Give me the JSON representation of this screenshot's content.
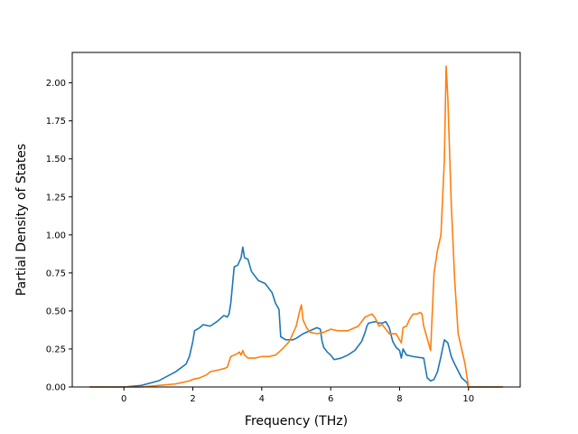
{
  "chart_data": {
    "type": "line",
    "title": "",
    "xlabel": "Frequency (THz)",
    "ylabel": "Partial Density of States",
    "xlim": [
      -1.5,
      11.5
    ],
    "ylim": [
      0.0,
      2.2
    ],
    "xticks": [
      0,
      2,
      4,
      6,
      8,
      10
    ],
    "xtick_labels": [
      "0",
      "2",
      "4",
      "6",
      "8",
      "10"
    ],
    "yticks": [
      0.0,
      0.25,
      0.5,
      0.75,
      1.0,
      1.25,
      1.5,
      1.75,
      2.0
    ],
    "ytick_labels": [
      "0.00",
      "0.25",
      "0.50",
      "0.75",
      "1.00",
      "1.25",
      "1.50",
      "1.75",
      "2.00"
    ],
    "grid": false,
    "legend": "none",
    "colors": {
      "series1": "#1f77b4",
      "series2": "#ff7f0e",
      "axes": "#000000"
    },
    "series": [
      {
        "color": "#1f77b4",
        "x": [
          -1.0,
          0.0,
          0.5,
          1.0,
          1.5,
          1.8,
          1.9,
          2.0,
          2.05,
          2.2,
          2.3,
          2.5,
          2.7,
          2.9,
          3.0,
          3.05,
          3.1,
          3.2,
          3.3,
          3.4,
          3.45,
          3.5,
          3.6,
          3.7,
          3.9,
          4.1,
          4.3,
          4.4,
          4.5,
          4.55,
          4.7,
          4.9,
          5.0,
          5.2,
          5.4,
          5.6,
          5.7,
          5.75,
          5.8,
          5.9,
          6.0,
          6.1,
          6.3,
          6.5,
          6.7,
          6.9,
          7.0,
          7.05,
          7.1,
          7.3,
          7.4,
          7.5,
          7.6,
          7.7,
          7.8,
          7.9,
          8.0,
          8.05,
          8.1,
          8.2,
          8.4,
          8.7,
          8.8,
          8.9,
          9.0,
          9.1,
          9.2,
          9.3,
          9.4,
          9.5,
          9.6,
          9.8,
          9.95,
          10.0,
          10.5,
          11.0
        ],
        "y": [
          0.0,
          0.0,
          0.01,
          0.04,
          0.1,
          0.15,
          0.2,
          0.3,
          0.37,
          0.39,
          0.41,
          0.4,
          0.43,
          0.47,
          0.46,
          0.48,
          0.55,
          0.79,
          0.8,
          0.85,
          0.92,
          0.85,
          0.84,
          0.76,
          0.7,
          0.68,
          0.62,
          0.55,
          0.51,
          0.33,
          0.31,
          0.31,
          0.32,
          0.35,
          0.37,
          0.39,
          0.38,
          0.3,
          0.26,
          0.23,
          0.21,
          0.18,
          0.19,
          0.21,
          0.24,
          0.3,
          0.36,
          0.4,
          0.42,
          0.43,
          0.42,
          0.42,
          0.43,
          0.39,
          0.3,
          0.26,
          0.24,
          0.19,
          0.25,
          0.21,
          0.2,
          0.19,
          0.06,
          0.04,
          0.05,
          0.1,
          0.2,
          0.31,
          0.29,
          0.2,
          0.15,
          0.06,
          0.03,
          0.0,
          0.0,
          0.0
        ]
      },
      {
        "color": "#ff7f0e",
        "x": [
          -1.0,
          0.0,
          0.5,
          1.0,
          1.5,
          1.9,
          2.0,
          2.2,
          2.4,
          2.5,
          2.7,
          2.9,
          3.0,
          3.1,
          3.2,
          3.3,
          3.35,
          3.4,
          3.45,
          3.5,
          3.6,
          3.8,
          4.0,
          4.2,
          4.4,
          4.6,
          4.8,
          5.0,
          5.1,
          5.15,
          5.2,
          5.3,
          5.4,
          5.6,
          5.8,
          5.9,
          6.0,
          6.2,
          6.5,
          6.8,
          7.0,
          7.1,
          7.2,
          7.3,
          7.4,
          7.5,
          7.6,
          7.7,
          7.8,
          7.9,
          8.0,
          8.05,
          8.1,
          8.2,
          8.3,
          8.4,
          8.5,
          8.6,
          8.65,
          8.7,
          8.8,
          8.9,
          9.0,
          9.1,
          9.2,
          9.3,
          9.35,
          9.4,
          9.5,
          9.6,
          9.7,
          9.8,
          9.85,
          9.9,
          10.0,
          10.5,
          11.0
        ],
        "y": [
          0.0,
          0.0,
          0.0,
          0.01,
          0.02,
          0.04,
          0.05,
          0.06,
          0.08,
          0.1,
          0.11,
          0.12,
          0.13,
          0.2,
          0.21,
          0.22,
          0.23,
          0.21,
          0.24,
          0.21,
          0.19,
          0.19,
          0.2,
          0.2,
          0.21,
          0.25,
          0.3,
          0.4,
          0.5,
          0.54,
          0.44,
          0.39,
          0.36,
          0.35,
          0.36,
          0.37,
          0.38,
          0.37,
          0.37,
          0.4,
          0.46,
          0.47,
          0.48,
          0.45,
          0.4,
          0.41,
          0.38,
          0.35,
          0.35,
          0.35,
          0.31,
          0.29,
          0.39,
          0.4,
          0.45,
          0.48,
          0.48,
          0.49,
          0.48,
          0.4,
          0.32,
          0.24,
          0.75,
          0.9,
          1.0,
          1.5,
          2.11,
          1.9,
          1.2,
          0.7,
          0.35,
          0.25,
          0.2,
          0.15,
          0.0,
          0.0,
          0.0
        ]
      }
    ]
  }
}
